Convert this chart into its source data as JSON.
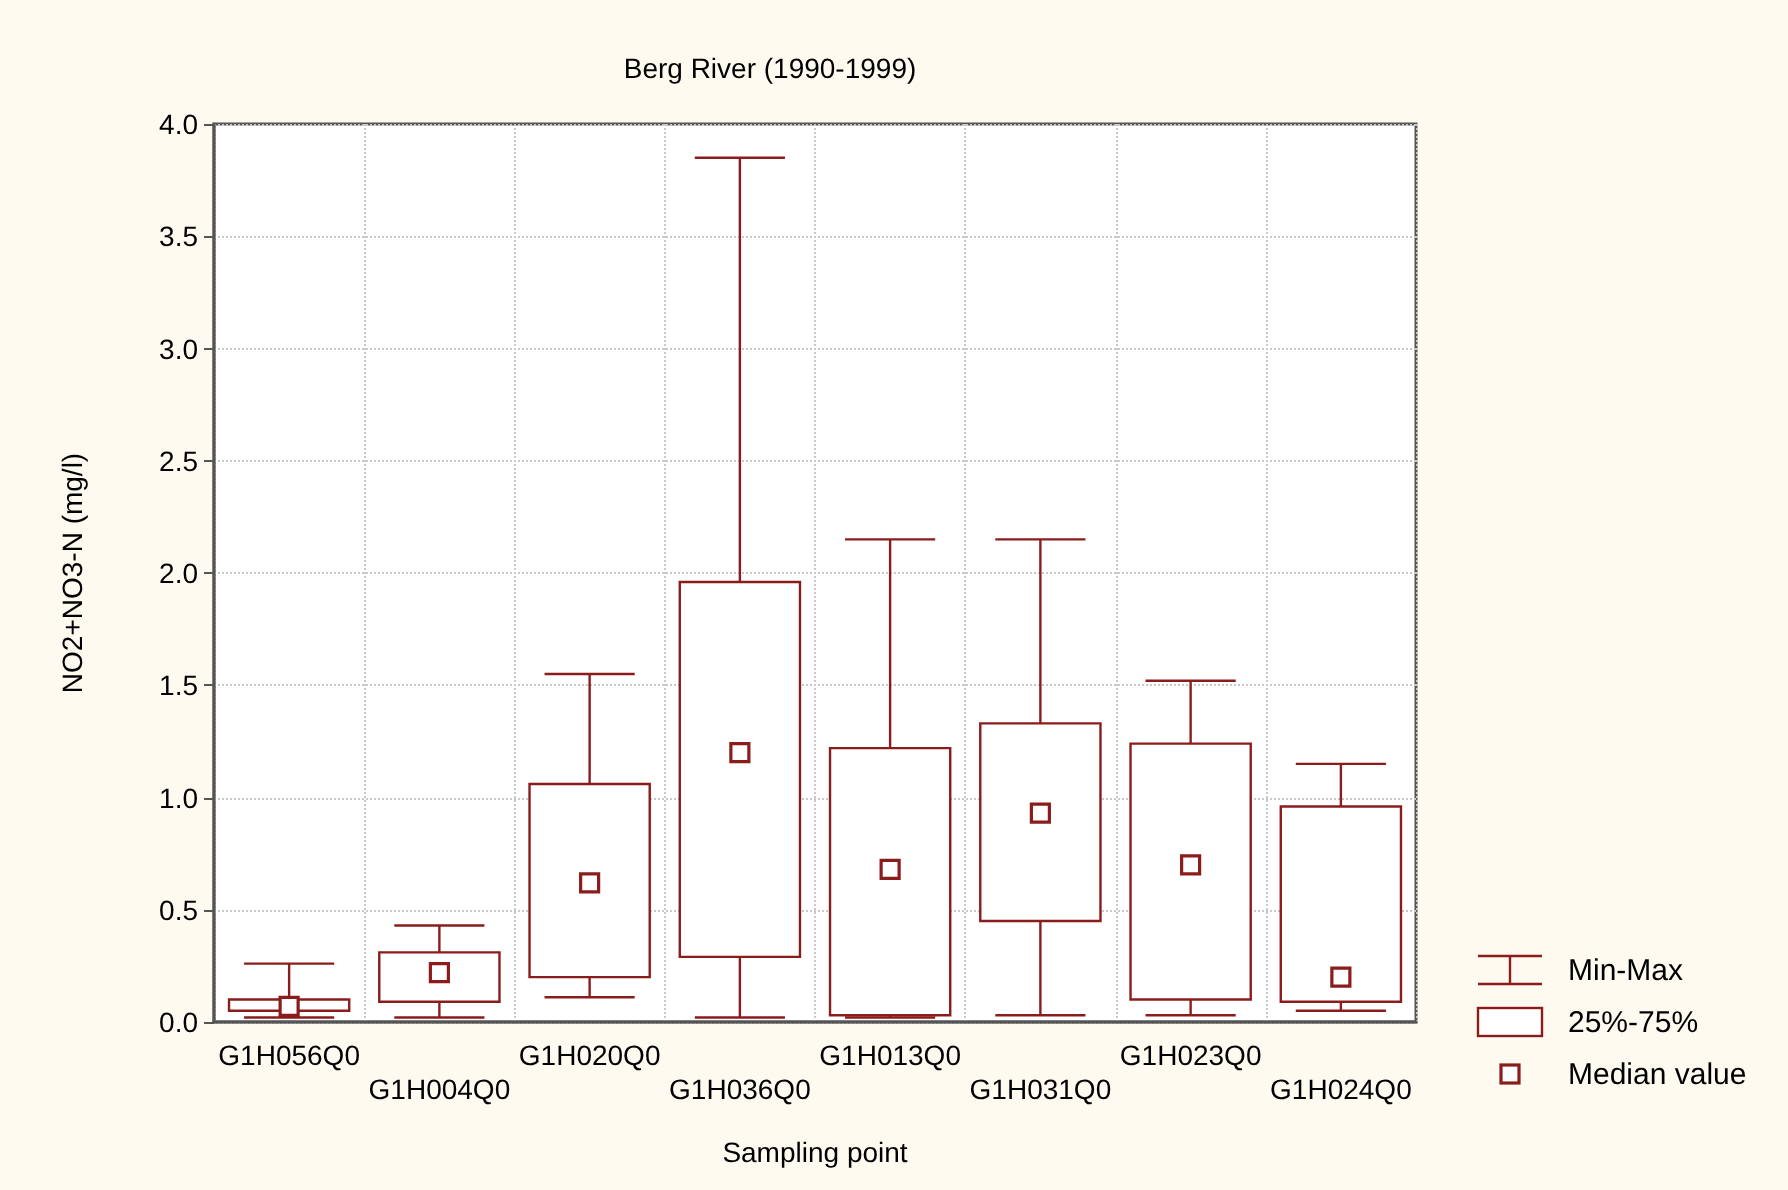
{
  "chart_data": {
    "type": "box",
    "title": "Berg River (1990-1999)",
    "xlabel": "Sampling point",
    "ylabel": "NO2+NO3-N (mg/l)",
    "categories": [
      "G1H056Q0",
      "G1H004Q0",
      "G1H020Q0",
      "G1H036Q0",
      "G1H013Q0",
      "G1H031Q0",
      "G1H023Q0",
      "G1H024Q0"
    ],
    "boxes": [
      {
        "low": 0.02,
        "q1": 0.05,
        "median": 0.07,
        "q3": 0.1,
        "high": 0.26
      },
      {
        "low": 0.02,
        "q1": 0.09,
        "median": 0.22,
        "q3": 0.31,
        "high": 0.43
      },
      {
        "low": 0.11,
        "q1": 0.2,
        "median": 0.62,
        "q3": 1.06,
        "high": 1.55
      },
      {
        "low": 0.02,
        "q1": 0.29,
        "median": 1.2,
        "q3": 1.96,
        "high": 3.85
      },
      {
        "low": 0.02,
        "q1": 0.03,
        "median": 0.68,
        "q3": 1.22,
        "high": 2.15
      },
      {
        "low": 0.03,
        "q1": 0.45,
        "median": 0.93,
        "q3": 1.33,
        "high": 2.15
      },
      {
        "low": 0.03,
        "q1": 0.1,
        "median": 0.7,
        "q3": 1.24,
        "high": 1.52
      },
      {
        "low": 0.05,
        "q1": 0.09,
        "median": 0.2,
        "q3": 0.96,
        "high": 1.15
      }
    ],
    "color": "#8b1c1c",
    "ylim": [
      0,
      4
    ],
    "yticks": [
      {
        "value": 0,
        "label": "0.0"
      },
      {
        "value": 0.5,
        "label": "0.5"
      },
      {
        "value": 1,
        "label": "1.0"
      },
      {
        "value": 1.5,
        "label": "1.5"
      },
      {
        "value": 2,
        "label": "2.0"
      },
      {
        "value": 2.5,
        "label": "2.5"
      },
      {
        "value": 3,
        "label": "3.0"
      },
      {
        "value": 3.5,
        "label": "3.5"
      },
      {
        "value": 4,
        "label": "4.0"
      }
    ],
    "grid": true,
    "annotations": [
      "Min-Max",
      "25%-75%",
      "Median value"
    ]
  }
}
